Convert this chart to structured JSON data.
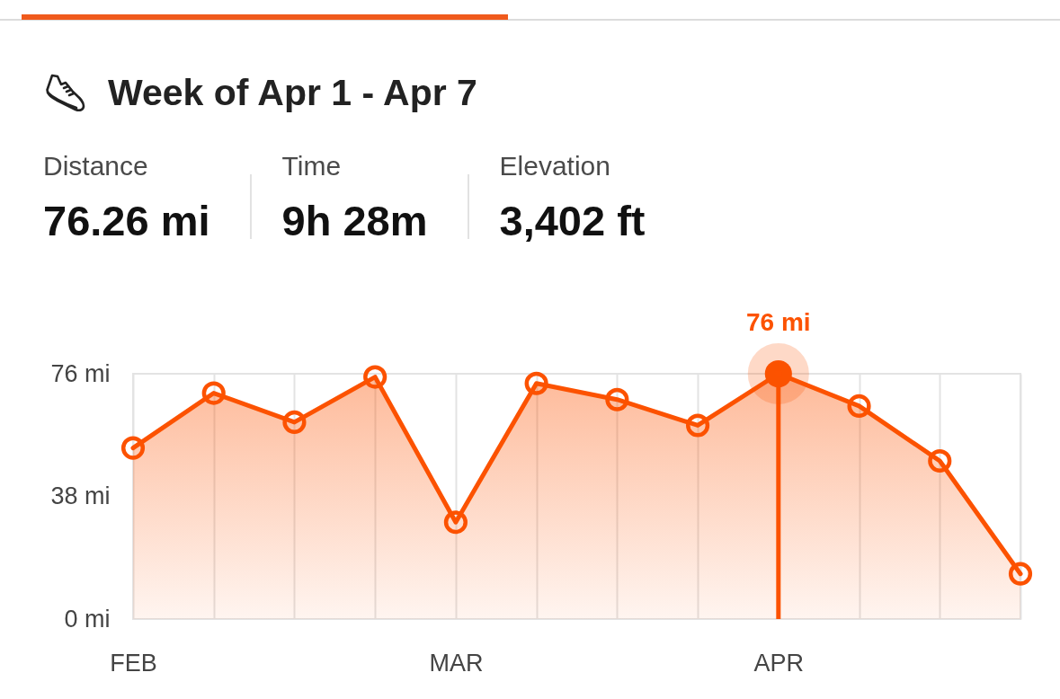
{
  "chart_data": {
    "type": "area",
    "title": "Week of Apr 1 - Apr 7",
    "annotations": [
      "Distance",
      "76.26 mi",
      "Time",
      "9h 28m",
      "Elevation",
      "3,402 ft"
    ],
    "categories": [
      "FEB",
      null,
      null,
      null,
      "MAR",
      null,
      null,
      null,
      "APR",
      null,
      null,
      null
    ],
    "series": [
      {
        "color": "#fc5200",
        "values": [
          53,
          70,
          61,
          75,
          30,
          73,
          68,
          60,
          76,
          66,
          49,
          14
        ]
      },
      {
        "type": "lollipop",
        "color": "#fc5200",
        "values": [
          null,
          null,
          null,
          null,
          null,
          null,
          null,
          null,
          76,
          null,
          null,
          null
        ],
        "value_labels": [
          null,
          null,
          null,
          null,
          null,
          null,
          null,
          null,
          "76 mi",
          null,
          null,
          null
        ]
      }
    ],
    "ylim": [
      0,
      76
    ],
    "yticks": [
      {
        "value": 0,
        "label": "0 mi"
      },
      {
        "value": 38,
        "label": "38 mi"
      },
      {
        "value": 76,
        "label": "76 mi"
      }
    ],
    "grid": "x",
    "marker": "circle"
  }
}
